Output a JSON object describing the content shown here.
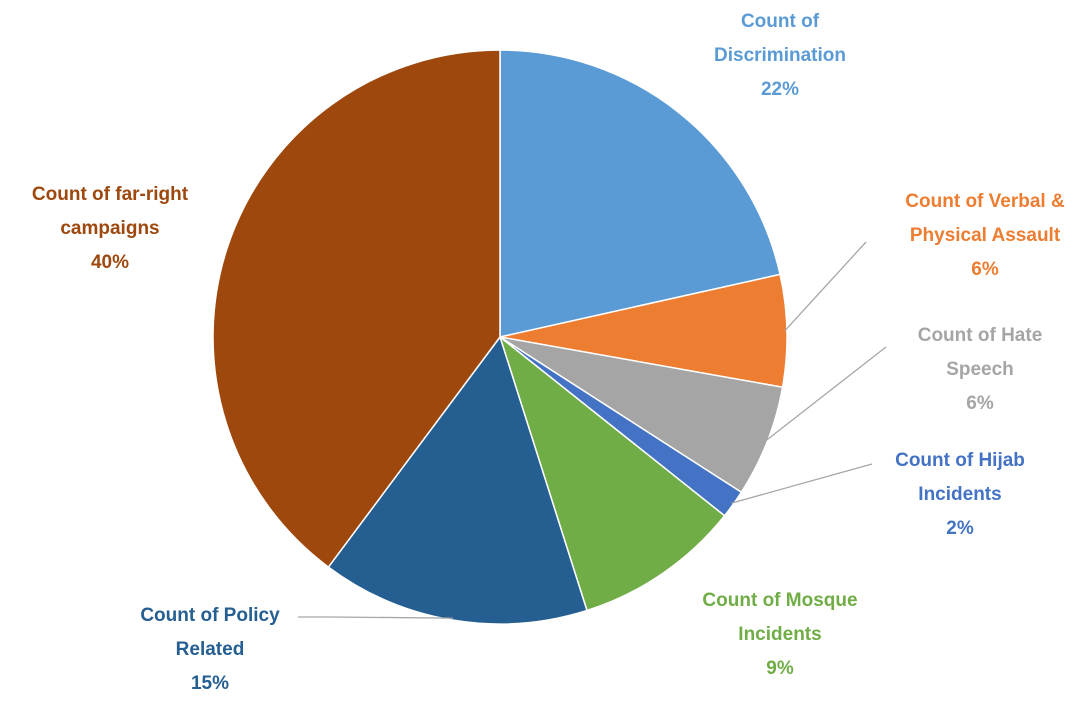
{
  "chart_data": {
    "type": "pie",
    "title": "",
    "start_angle_deg": 0,
    "direction": "clockwise",
    "slices": [
      {
        "name": "Count of Discrimination",
        "label_lines": [
          "Count of",
          "Discrimination"
        ],
        "percent_label": "22%",
        "value": 21.5,
        "color": "#5B9BD5"
      },
      {
        "name": "Count of Verbal & Physical Assault",
        "label_lines": [
          "Count of Verbal &",
          "Physical Assault"
        ],
        "percent_label": "6%",
        "value": 6.3,
        "color": "#ED7D31"
      },
      {
        "name": "Count of Hate Speech",
        "label_lines": [
          "Count of Hate",
          "Speech"
        ],
        "percent_label": "6%",
        "value": 6.3,
        "color": "#A5A5A5"
      },
      {
        "name": "Count of Hijab Incidents",
        "label_lines": [
          "Count of Hijab",
          "Incidents"
        ],
        "percent_label": "2%",
        "value": 1.6,
        "color": "#4472C4"
      },
      {
        "name": "Count of Mosque Incidents",
        "label_lines": [
          "Count of Mosque",
          "Incidents"
        ],
        "percent_label": "9%",
        "value": 9.4,
        "color": "#70AD47"
      },
      {
        "name": "Count of Policy Related",
        "label_lines": [
          "Count of Policy",
          "Related"
        ],
        "percent_label": "15%",
        "value": 15.1,
        "color": "#255E91"
      },
      {
        "name": "Count of far-right campaigns",
        "label_lines": [
          "Count of far-right",
          "campaigns"
        ],
        "percent_label": "40%",
        "value": 39.8,
        "color": "#9E480E"
      }
    ],
    "leader_line_color": "#A6A6A6"
  }
}
